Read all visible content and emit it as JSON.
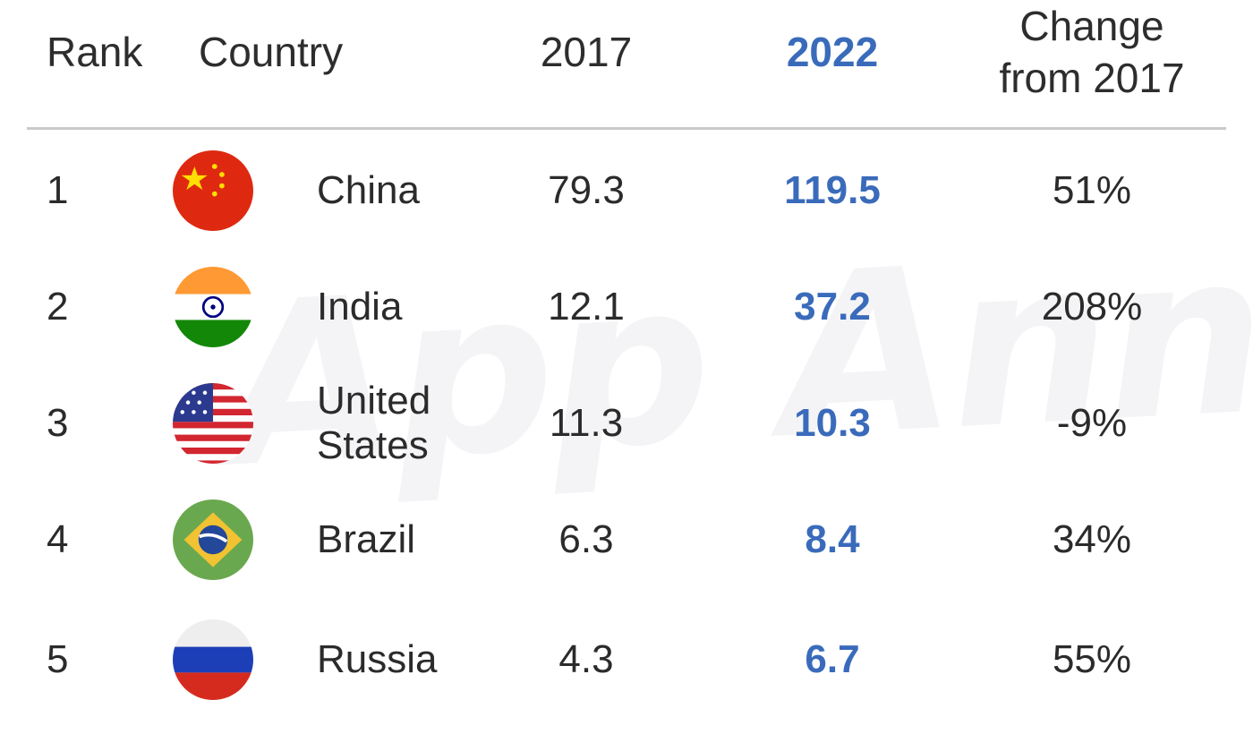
{
  "watermark": "App Annie",
  "header": {
    "rank": "Rank",
    "country": "Country",
    "col_2017": "2017",
    "col_2022": "2022",
    "change_line1": "Change",
    "change_line2": "from 2017"
  },
  "colors": {
    "accent": "#3a6bbb",
    "divider": "#c9cacc",
    "text": "#2d2d2d"
  },
  "chart_data": {
    "type": "table",
    "columns": [
      "Rank",
      "Country",
      "2017",
      "2022",
      "Change from 2017"
    ],
    "rows": [
      {
        "rank": "1",
        "country": "China",
        "flag": "china-flag-icon",
        "v2017": "79.3",
        "v2022": "119.5",
        "change": "51%"
      },
      {
        "rank": "2",
        "country": "India",
        "flag": "india-flag-icon",
        "v2017": "12.1",
        "v2022": "37.2",
        "change": "208%"
      },
      {
        "rank": "3",
        "country_line1": "United",
        "country_line2": "States",
        "flag": "usa-flag-icon",
        "v2017": "11.3",
        "v2022": "10.3",
        "change": "-9%"
      },
      {
        "rank": "4",
        "country": "Brazil",
        "flag": "brazil-flag-icon",
        "v2017": "6.3",
        "v2022": "8.4",
        "change": "34%"
      },
      {
        "rank": "5",
        "country": "Russia",
        "flag": "russia-flag-icon",
        "v2017": "4.3",
        "v2022": "6.7",
        "change": "55%"
      }
    ]
  }
}
